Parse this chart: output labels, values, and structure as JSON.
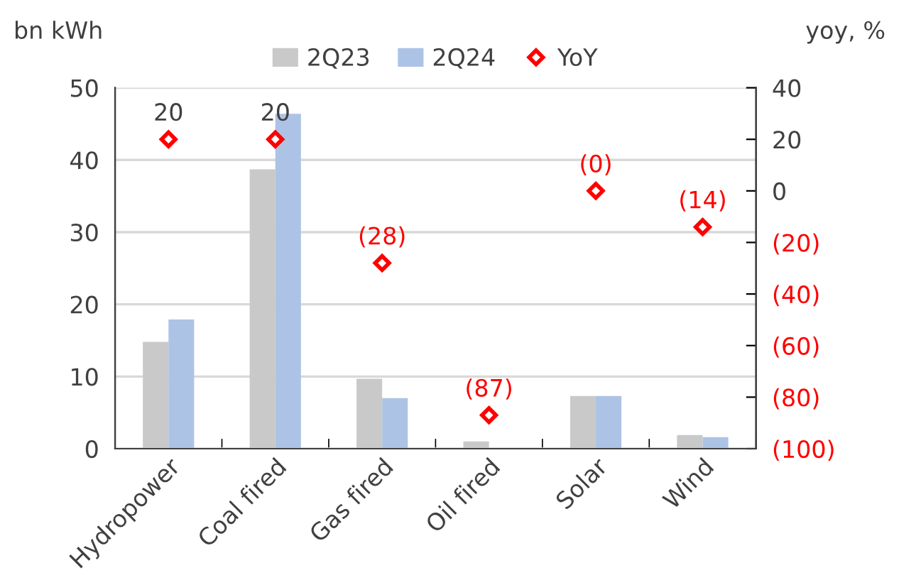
{
  "chart_data": {
    "type": "bar",
    "ylabel": "bn kWh",
    "y2label": "yoy, %",
    "categories": [
      "Hydropower",
      "Coal fired",
      "Gas fired",
      "Oil fired",
      "Solar",
      "Wind"
    ],
    "series": [
      {
        "name": "2Q23",
        "color": "#c9c9c9",
        "values": [
          14.8,
          38.7,
          9.7,
          1.0,
          7.3,
          1.9
        ]
      },
      {
        "name": "2Q24",
        "color": "#adc3e6",
        "values": [
          17.9,
          46.4,
          7.0,
          null,
          7.3,
          1.6
        ]
      },
      {
        "name": "YoY",
        "type": "scatter",
        "axis": "y2",
        "color": "#ff0000",
        "marker": "diamond",
        "values": [
          20,
          20,
          -28,
          -87,
          0,
          -14
        ],
        "value_labels": [
          "20",
          "20",
          "(28)",
          "(87)",
          "(0)",
          "(14)"
        ]
      }
    ],
    "ylim": [
      0,
      50
    ],
    "yticks": [
      0,
      10,
      20,
      30,
      40,
      50
    ],
    "y2lim": [
      -100,
      40
    ],
    "y2ticks": [
      {
        "value": -100,
        "label": "(100)"
      },
      {
        "value": -80,
        "label": "(80)"
      },
      {
        "value": -60,
        "label": "(60)"
      },
      {
        "value": -40,
        "label": "(40)"
      },
      {
        "value": -20,
        "label": "(20)"
      },
      0,
      20,
      40
    ],
    "grid": "y",
    "legend": "top"
  }
}
